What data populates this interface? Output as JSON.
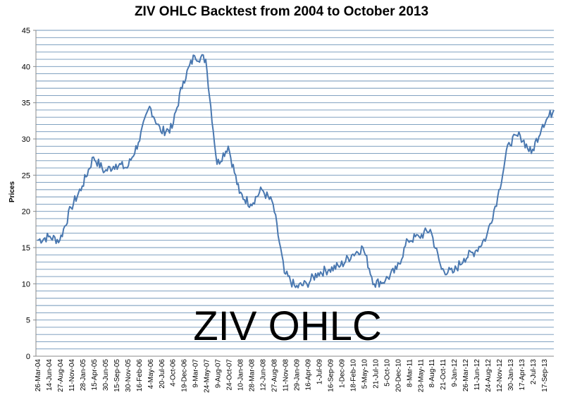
{
  "chart_data": {
    "type": "line",
    "title": "ZIV OHLC Backtest from 2004 to October 2013",
    "xlabel": "",
    "ylabel": "Prices",
    "annotation": "ZIV OHLC",
    "ylim": [
      0,
      45
    ],
    "y_ticks": [
      0,
      5,
      10,
      15,
      20,
      25,
      30,
      35,
      40,
      45
    ],
    "grid": "horizontal every 1 unit",
    "legend": "none",
    "line_color": "#4a78b0",
    "x_tick_labels": [
      "26-Mar-04",
      "14-Jun-04",
      "27-Aug-04",
      "11-Nov-04",
      "28-Jan-05",
      "15-Apr-05",
      "30-Jun-05",
      "15-Sep-05",
      "30-Nov-05",
      "16-Feb-06",
      "4-May-06",
      "20-Jul-06",
      "4-Oct-06",
      "19-Dec-06",
      "9-Mar-07",
      "24-May-07",
      "9-Aug-07",
      "24-Oct-07",
      "10-Jan-08",
      "28-Mar-08",
      "12-Jun-08",
      "27-Aug-08",
      "11-Nov-08",
      "29-Jan-09",
      "16-Apr-09",
      "1-Jul-09",
      "16-Sep-09",
      "1-Dec-09",
      "18-Feb-10",
      "5-May-10",
      "21-Jul-10",
      "5-Oct-10",
      "20-Dec-10",
      "8-Mar-11",
      "23-May-11",
      "8-Aug-11",
      "21-Oct-11",
      "9-Jan-12",
      "26-Mar-12",
      "11-Jun-12",
      "24-Aug-12",
      "12-Nov-12",
      "30-Jan-13",
      "17-Apr-13",
      "2-Jul-13",
      "17-Sep-13"
    ],
    "x_end": "Oct-13",
    "series": [
      {
        "x": [
          "26-Mar-04",
          "14-Jun-04",
          "27-Aug-04",
          "11-Nov-04",
          "28-Jan-05",
          "15-Apr-05",
          "30-Jun-05",
          "15-Sep-05",
          "30-Nov-05",
          "16-Feb-06",
          "4-May-06",
          "20-Jul-06",
          "4-Oct-06",
          "19-Dec-06",
          "9-Mar-07",
          "24-May-07",
          "9-Aug-07",
          "24-Oct-07",
          "10-Jan-08",
          "28-Mar-08",
          "12-Jun-08",
          "27-Aug-08",
          "11-Nov-08",
          "29-Jan-09",
          "16-Apr-09",
          "1-Jul-09",
          "16-Sep-09",
          "1-Dec-09",
          "18-Feb-10",
          "5-May-10",
          "21-Jul-10",
          "5-Oct-10",
          "20-Dec-10",
          "8-Mar-11",
          "23-May-11",
          "8-Aug-11",
          "21-Oct-11",
          "9-Jan-12",
          "26-Mar-12",
          "11-Jun-12",
          "24-Aug-12",
          "12-Nov-12",
          "30-Jan-13",
          "17-Apr-13",
          "2-Jul-13",
          "17-Sep-13",
          "Oct-13"
        ],
        "values": [
          16.0,
          16.5,
          16.0,
          20.5,
          23.5,
          27.5,
          25.5,
          26.5,
          26.0,
          29.5,
          34.5,
          31.0,
          31.5,
          38.0,
          41.5,
          41.0,
          26.5,
          29.0,
          22.5,
          21.0,
          23.0,
          21.0,
          11.5,
          9.5,
          10.0,
          11.5,
          12.0,
          12.5,
          14.0,
          15.0,
          10.0,
          10.5,
          12.0,
          16.0,
          16.5,
          17.5,
          12.0,
          11.5,
          13.5,
          14.5,
          16.5,
          22.0,
          29.5,
          30.5,
          28.0,
          32.0,
          34.0
        ]
      }
    ]
  }
}
